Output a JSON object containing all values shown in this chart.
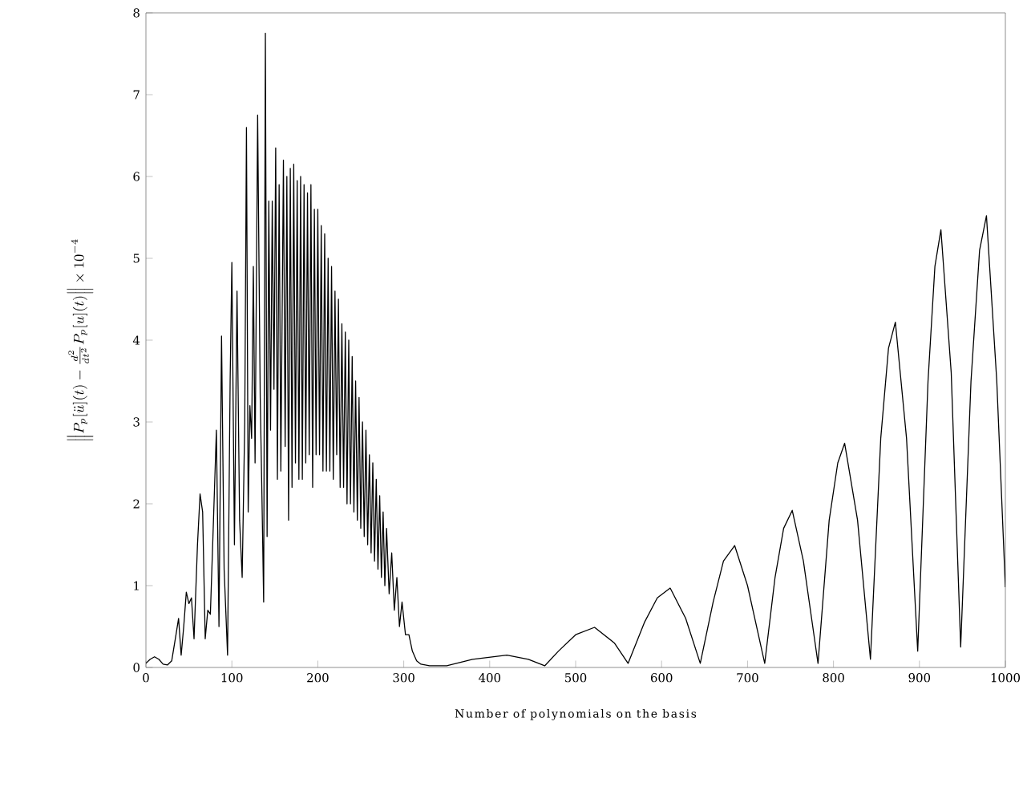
{
  "chart_data": {
    "type": "line",
    "xlabel": "Number of polynomials on the basis",
    "ylabel": "\\left\\|P_p[\\ddot{u}](t)-\\frac{d^2}{dt^2}P_p[u](t)\\right\\|\\times 10^{-4}",
    "xlim": [
      0,
      1000
    ],
    "ylim": [
      0,
      8
    ],
    "xticks": [
      0,
      100,
      200,
      300,
      400,
      500,
      600,
      700,
      800,
      900,
      1000
    ],
    "yticks": [
      0,
      1,
      2,
      3,
      4,
      5,
      6,
      7,
      8
    ],
    "x": [
      0,
      5,
      10,
      15,
      20,
      25,
      30,
      35,
      38,
      41,
      44,
      47,
      50,
      53,
      56,
      60,
      63,
      66,
      69,
      72,
      75,
      78,
      82,
      85,
      88,
      91,
      95,
      98,
      100,
      103,
      106,
      109,
      112,
      115,
      117,
      119,
      121,
      123,
      125,
      127,
      130,
      133,
      135,
      137,
      139,
      141,
      143,
      145,
      147,
      149,
      151,
      153,
      155,
      157,
      160,
      162,
      164,
      166,
      168,
      170,
      172,
      174,
      176,
      178,
      180,
      182,
      184,
      186,
      188,
      190,
      192,
      194,
      196,
      198,
      200,
      202,
      204,
      206,
      208,
      210,
      212,
      214,
      216,
      218,
      220,
      222,
      224,
      226,
      228,
      230,
      232,
      234,
      236,
      238,
      240,
      242,
      244,
      246,
      248,
      250,
      252,
      254,
      256,
      258,
      260,
      262,
      264,
      266,
      268,
      270,
      272,
      274,
      276,
      278,
      280,
      283,
      286,
      289,
      292,
      295,
      298,
      302,
      306,
      310,
      315,
      320,
      330,
      350,
      380,
      420,
      445,
      464,
      480,
      500,
      522,
      545,
      561,
      580,
      595,
      610,
      628,
      645,
      660,
      672,
      685,
      700,
      720,
      732,
      742,
      752,
      765,
      782,
      795,
      805,
      813,
      828,
      843,
      855,
      864,
      872,
      885,
      898,
      910,
      918,
      925,
      937,
      948,
      960,
      970,
      978,
      990,
      1000
    ],
    "series": [
      {
        "color": "#000000",
        "values": [
          0.05,
          0.1,
          0.13,
          0.1,
          0.04,
          0.03,
          0.08,
          0.4,
          0.6,
          0.15,
          0.5,
          0.92,
          0.78,
          0.85,
          0.35,
          1.5,
          2.12,
          1.9,
          0.35,
          0.7,
          0.65,
          1.6,
          2.9,
          0.5,
          4.05,
          1.2,
          0.15,
          3.5,
          4.95,
          1.5,
          4.6,
          1.8,
          1.1,
          3.0,
          6.6,
          1.9,
          3.2,
          2.8,
          4.9,
          2.5,
          6.75,
          3.3,
          2.1,
          0.8,
          7.75,
          1.6,
          5.7,
          2.9,
          5.7,
          3.4,
          6.35,
          2.3,
          5.9,
          2.4,
          6.2,
          2.7,
          6.0,
          1.8,
          6.1,
          2.2,
          6.15,
          2.5,
          5.95,
          2.3,
          6.0,
          2.3,
          5.9,
          2.5,
          5.8,
          2.6,
          5.9,
          2.2,
          5.6,
          2.6,
          5.6,
          2.6,
          5.4,
          2.4,
          5.3,
          2.4,
          5.0,
          2.4,
          4.9,
          2.3,
          4.6,
          2.6,
          4.5,
          2.2,
          4.2,
          2.2,
          4.1,
          2.0,
          4.0,
          2.0,
          3.8,
          1.9,
          3.5,
          1.8,
          3.3,
          1.7,
          3.0,
          1.6,
          2.9,
          1.5,
          2.6,
          1.4,
          2.5,
          1.3,
          2.3,
          1.2,
          2.1,
          1.1,
          1.9,
          1.0,
          1.7,
          0.9,
          1.4,
          0.7,
          1.1,
          0.5,
          0.8,
          0.4,
          0.4,
          0.2,
          0.08,
          0.04,
          0.02,
          0.02,
          0.1,
          0.15,
          0.1,
          0.02,
          0.2,
          0.4,
          0.49,
          0.3,
          0.05,
          0.55,
          0.85,
          0.97,
          0.6,
          0.05,
          0.8,
          1.3,
          1.49,
          1.0,
          0.05,
          1.1,
          1.7,
          1.92,
          1.3,
          0.05,
          1.8,
          2.5,
          2.74,
          1.8,
          0.1,
          2.8,
          3.9,
          4.22,
          2.8,
          0.2,
          3.5,
          4.9,
          5.35,
          3.6,
          0.25,
          3.5,
          5.1,
          5.52,
          3.5,
          0.98
        ]
      }
    ]
  }
}
